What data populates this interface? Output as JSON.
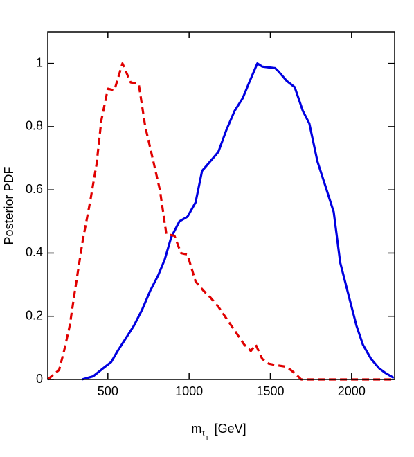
{
  "chart_data": {
    "type": "line",
    "ylabel": "Posterior PDF",
    "xlabel": {
      "base": "m",
      "sub": "τ",
      "subsub": "1",
      "unit": "[GeV]"
    },
    "xlim": [
      130,
      2265
    ],
    "ylim": [
      0,
      1.1
    ],
    "xticks": [
      500,
      1000,
      1500,
      2000
    ],
    "yticks": [
      0,
      0.2,
      0.4,
      0.6,
      0.8,
      1
    ],
    "series": [
      {
        "color": "#0000e0",
        "dash": false,
        "x": [
          340,
          410,
          470,
          520,
          560,
          610,
          660,
          710,
          760,
          810,
          850,
          890,
          940,
          990,
          1040,
          1080,
          1130,
          1180,
          1230,
          1280,
          1330,
          1370,
          1420,
          1450,
          1530,
          1550,
          1600,
          1650,
          1700,
          1740,
          1790,
          1840,
          1890,
          1930,
          1980,
          2030,
          2070,
          2120,
          2170,
          2210,
          2260
        ],
        "values": [
          0,
          0.01,
          0.035,
          0.055,
          0.09,
          0.13,
          0.17,
          0.22,
          0.28,
          0.33,
          0.38,
          0.45,
          0.5,
          0.515,
          0.56,
          0.66,
          0.69,
          0.72,
          0.79,
          0.85,
          0.89,
          0.94,
          1.0,
          0.99,
          0.985,
          0.975,
          0.945,
          0.925,
          0.85,
          0.81,
          0.69,
          0.61,
          0.53,
          0.37,
          0.27,
          0.17,
          0.11,
          0.065,
          0.035,
          0.02,
          0.005
        ]
      },
      {
        "color": "#e00000",
        "dash": true,
        "x": [
          130,
          200,
          230,
          265,
          300,
          345,
          390,
          430,
          460,
          500,
          540,
          590,
          640,
          690,
          730,
          780,
          820,
          860,
          910,
          950,
          990,
          1040,
          1090,
          1130,
          1180,
          1220,
          1260,
          1300,
          1340,
          1380,
          1410,
          1450,
          1490,
          1540,
          1600,
          1650,
          1690,
          1750,
          2265
        ],
        "values": [
          0,
          0.03,
          0.09,
          0.17,
          0.29,
          0.44,
          0.56,
          0.68,
          0.82,
          0.92,
          0.915,
          1.0,
          0.94,
          0.935,
          0.8,
          0.69,
          0.6,
          0.46,
          0.455,
          0.4,
          0.395,
          0.31,
          0.28,
          0.26,
          0.23,
          0.2,
          0.17,
          0.14,
          0.11,
          0.09,
          0.11,
          0.065,
          0.05,
          0.045,
          0.04,
          0.02,
          0,
          0,
          0
        ]
      }
    ]
  }
}
